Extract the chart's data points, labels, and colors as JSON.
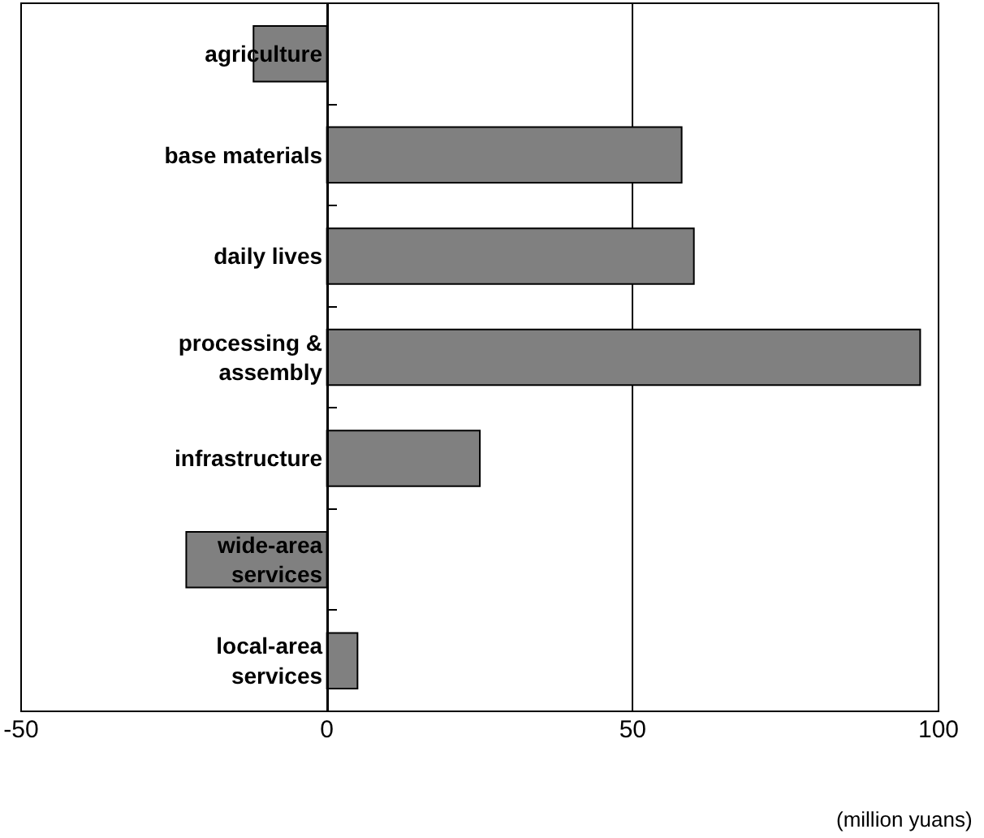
{
  "chart_data": {
    "type": "bar",
    "orientation": "horizontal",
    "categories": [
      "agriculture",
      "base materials",
      "daily lives",
      "processing & assembly",
      "infrastructure",
      "wide-area services",
      "local-area services"
    ],
    "values": [
      -12,
      58,
      60,
      97,
      25,
      -23,
      5
    ],
    "color": "#808080",
    "xlim": [
      -50,
      100
    ],
    "xticks": [
      -50,
      0,
      50,
      100
    ],
    "grid": "x",
    "legend": false,
    "annotations": [
      "(million yuans)"
    ]
  }
}
